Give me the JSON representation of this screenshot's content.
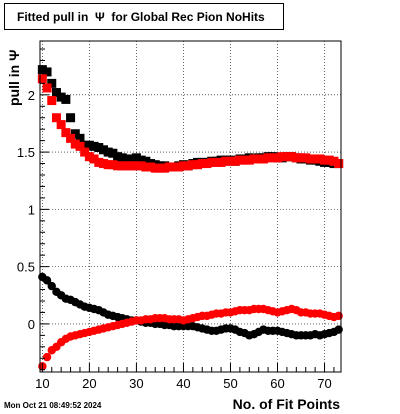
{
  "chart_data": {
    "type": "scatter",
    "title": "Fitted pull in  Ψ  for Global Rec Pion NoHits",
    "xlabel": "No. of Fit Points",
    "ylabel": "pull in  Ψ",
    "timestamp": "Mon Oct 21 08:49:52 2024",
    "xlim": [
      9.5,
      73.5
    ],
    "ylim": [
      -0.42,
      2.47
    ],
    "x_ticks": [
      10,
      20,
      30,
      40,
      50,
      60,
      70
    ],
    "y_ticks": [
      0,
      0.5,
      1,
      1.5,
      2
    ],
    "y_tick_labels": [
      "0",
      "0.5",
      "1",
      "1.5",
      "2"
    ],
    "grid": true,
    "series": [
      {
        "marker": "square",
        "color": "#000000",
        "x": [
          10,
          11,
          12,
          13,
          14,
          15,
          16,
          17,
          18,
          19,
          20,
          21,
          22,
          23,
          24,
          25,
          26,
          27,
          28,
          29,
          30,
          31,
          32,
          33,
          34,
          35,
          36,
          37,
          38,
          39,
          40,
          41,
          42,
          43,
          44,
          45,
          46,
          47,
          48,
          49,
          50,
          51,
          52,
          53,
          54,
          55,
          56,
          57,
          58,
          59,
          60,
          61,
          62,
          63,
          64,
          65,
          66,
          67,
          68,
          69,
          70,
          71,
          72,
          73
        ],
        "y": [
          2.22,
          2.2,
          2.1,
          2.02,
          1.98,
          1.96,
          1.8,
          1.66,
          1.62,
          1.56,
          1.56,
          1.55,
          1.54,
          1.52,
          1.5,
          1.49,
          1.46,
          1.45,
          1.44,
          1.44,
          1.45,
          1.43,
          1.42,
          1.4,
          1.39,
          1.38,
          1.38,
          1.37,
          1.37,
          1.38,
          1.39,
          1.38,
          1.4,
          1.41,
          1.41,
          1.41,
          1.42,
          1.42,
          1.43,
          1.43,
          1.43,
          1.42,
          1.44,
          1.44,
          1.45,
          1.44,
          1.45,
          1.45,
          1.46,
          1.46,
          1.45,
          1.45,
          1.46,
          1.46,
          1.45,
          1.44,
          1.44,
          1.43,
          1.43,
          1.42,
          1.41,
          1.41,
          1.4,
          1.4
        ]
      },
      {
        "marker": "square",
        "color": "#ff0000",
        "x": [
          10,
          11,
          12,
          13,
          14,
          15,
          16,
          17,
          18,
          19,
          20,
          21,
          22,
          23,
          24,
          25,
          26,
          27,
          28,
          29,
          30,
          31,
          32,
          33,
          34,
          35,
          36,
          37,
          38,
          39,
          40,
          41,
          42,
          43,
          44,
          45,
          46,
          47,
          48,
          49,
          50,
          51,
          52,
          53,
          54,
          55,
          56,
          57,
          58,
          59,
          60,
          61,
          62,
          63,
          64,
          65,
          66,
          67,
          68,
          69,
          70,
          71,
          72,
          73
        ],
        "y": [
          2.14,
          2.06,
          1.95,
          1.8,
          1.74,
          1.67,
          1.62,
          1.57,
          1.55,
          1.5,
          1.46,
          1.44,
          1.41,
          1.4,
          1.39,
          1.39,
          1.38,
          1.38,
          1.38,
          1.38,
          1.38,
          1.38,
          1.37,
          1.37,
          1.36,
          1.36,
          1.36,
          1.37,
          1.37,
          1.37,
          1.38,
          1.38,
          1.39,
          1.39,
          1.4,
          1.4,
          1.41,
          1.41,
          1.41,
          1.42,
          1.42,
          1.42,
          1.43,
          1.43,
          1.43,
          1.44,
          1.44,
          1.44,
          1.45,
          1.45,
          1.45,
          1.46,
          1.46,
          1.46,
          1.45,
          1.45,
          1.45,
          1.44,
          1.44,
          1.44,
          1.43,
          1.43,
          1.42,
          1.4
        ]
      },
      {
        "marker": "circle",
        "color": "#000000",
        "x": [
          10,
          11,
          12,
          13,
          14,
          15,
          16,
          17,
          18,
          19,
          20,
          21,
          22,
          23,
          24,
          25,
          26,
          27,
          28,
          29,
          30,
          31,
          32,
          33,
          34,
          35,
          36,
          37,
          38,
          39,
          40,
          41,
          42,
          43,
          44,
          45,
          46,
          47,
          48,
          49,
          50,
          51,
          52,
          53,
          54,
          55,
          56,
          57,
          58,
          59,
          60,
          61,
          62,
          63,
          64,
          65,
          66,
          67,
          68,
          69,
          70,
          71,
          72,
          73
        ],
        "y": [
          0.41,
          0.38,
          0.33,
          0.28,
          0.25,
          0.22,
          0.21,
          0.19,
          0.17,
          0.15,
          0.14,
          0.13,
          0.12,
          0.1,
          0.08,
          0.07,
          0.06,
          0.05,
          0.04,
          0.03,
          0.03,
          0.02,
          0.01,
          0.01,
          0.0,
          0.0,
          -0.01,
          -0.01,
          -0.02,
          -0.02,
          -0.02,
          -0.02,
          -0.02,
          -0.03,
          -0.04,
          -0.05,
          -0.06,
          -0.06,
          -0.05,
          -0.04,
          -0.04,
          -0.05,
          -0.07,
          -0.08,
          -0.1,
          -0.09,
          -0.07,
          -0.05,
          -0.06,
          -0.06,
          -0.06,
          -0.07,
          -0.08,
          -0.09,
          -0.1,
          -0.1,
          -0.1,
          -0.1,
          -0.09,
          -0.1,
          -0.09,
          -0.08,
          -0.07,
          -0.05
        ]
      },
      {
        "marker": "circle",
        "color": "#ff0000",
        "x": [
          10,
          11,
          12,
          13,
          14,
          15,
          16,
          17,
          18,
          19,
          20,
          21,
          22,
          23,
          24,
          25,
          26,
          27,
          28,
          29,
          30,
          31,
          32,
          33,
          34,
          35,
          36,
          37,
          38,
          39,
          40,
          41,
          42,
          43,
          44,
          45,
          46,
          47,
          48,
          49,
          50,
          51,
          52,
          53,
          54,
          55,
          56,
          57,
          58,
          59,
          60,
          61,
          62,
          63,
          64,
          65,
          66,
          67,
          68,
          69,
          70,
          71,
          72,
          73
        ],
        "y": [
          -0.37,
          -0.29,
          -0.23,
          -0.2,
          -0.16,
          -0.13,
          -0.11,
          -0.1,
          -0.09,
          -0.08,
          -0.07,
          -0.06,
          -0.05,
          -0.04,
          -0.03,
          -0.02,
          -0.01,
          0.0,
          0.01,
          0.02,
          0.03,
          0.03,
          0.04,
          0.04,
          0.05,
          0.05,
          0.05,
          0.04,
          0.04,
          0.04,
          0.03,
          0.04,
          0.05,
          0.06,
          0.07,
          0.07,
          0.08,
          0.09,
          0.09,
          0.1,
          0.1,
          0.11,
          0.12,
          0.12,
          0.12,
          0.13,
          0.13,
          0.13,
          0.12,
          0.11,
          0.1,
          0.11,
          0.12,
          0.13,
          0.12,
          0.1,
          0.1,
          0.09,
          0.09,
          0.09,
          0.08,
          0.07,
          0.06,
          0.07
        ]
      }
    ]
  }
}
